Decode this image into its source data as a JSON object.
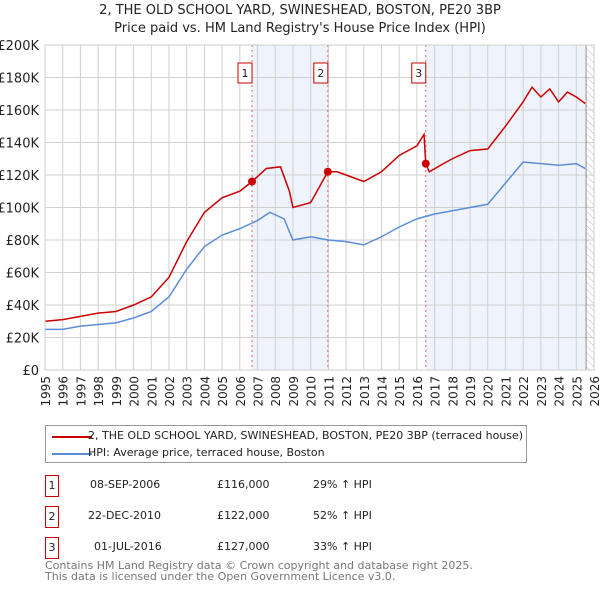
{
  "title": "2, THE OLD SCHOOL YARD, SWINESHEAD, BOSTON, PE20 3BP",
  "subtitle": "Price paid vs. HM Land Registry's House Price Index (HPI)",
  "chart_data": {
    "type": "line",
    "title": "2, THE OLD SCHOOL YARD, SWINESHEAD, BOSTON, PE20 3BP",
    "subtitle": "Price paid vs. HM Land Registry's House Price Index (HPI)",
    "xlim": [
      1995,
      2026
    ],
    "ylim": [
      0,
      200000
    ],
    "yticks": [
      0,
      20000,
      40000,
      60000,
      80000,
      100000,
      120000,
      140000,
      160000,
      180000,
      200000
    ],
    "ytick_labels": [
      "£0",
      "£20K",
      "£40K",
      "£60K",
      "£80K",
      "£100K",
      "£120K",
      "£140K",
      "£160K",
      "£180K",
      "£200K"
    ],
    "xticks": [
      "1995",
      "1996",
      "1997",
      "1998",
      "1999",
      "2000",
      "2001",
      "2002",
      "2003",
      "2004",
      "2005",
      "2006",
      "2007",
      "2008",
      "2009",
      "2010",
      "2011",
      "2012",
      "2013",
      "2014",
      "2015",
      "2016",
      "2017",
      "2018",
      "2019",
      "2020",
      "2021",
      "2022",
      "2023",
      "2024",
      "2025",
      "2026"
    ],
    "grid": true,
    "legend_position": "bottom",
    "series": [
      {
        "name": "2, THE OLD SCHOOL YARD, SWINESHEAD, BOSTON, PE20 3BP (terraced house)",
        "color": "#cc0000",
        "x": [
          1995,
          1996,
          1997,
          1998,
          1999,
          2000,
          2001,
          2002,
          2003,
          2004,
          2005,
          2006,
          2006.69,
          2007.5,
          2008.3,
          2008.8,
          2009,
          2010,
          2010.97,
          2011.5,
          2012,
          2013,
          2014,
          2015,
          2016,
          2016.4,
          2016.5,
          2016.7,
          2017.5,
          2018,
          2019,
          2020,
          2021,
          2022,
          2022.5,
          2023,
          2023.5,
          2024,
          2024.5,
          2025,
          2025.5
        ],
        "y": [
          30000,
          31000,
          33000,
          35000,
          36000,
          40000,
          45000,
          57000,
          79000,
          97000,
          106000,
          110000,
          116000,
          124000,
          125000,
          110000,
          100000,
          103000,
          122000,
          122000,
          120000,
          116000,
          122000,
          132000,
          138000,
          145000,
          127000,
          122000,
          127000,
          130000,
          135000,
          136000,
          150000,
          165000,
          174000,
          168000,
          173000,
          165000,
          171000,
          168000,
          164000
        ]
      },
      {
        "name": "HPI: Average price, terraced house, Boston",
        "color": "#5b8dd6",
        "x": [
          1995,
          1996,
          1997,
          1998,
          1999,
          2000,
          2001,
          2002,
          2003,
          2004,
          2005,
          2006,
          2007,
          2007.7,
          2008.5,
          2009,
          2010,
          2011,
          2012,
          2013,
          2014,
          2015,
          2016,
          2017,
          2018,
          2019,
          2020,
          2021,
          2022,
          2023,
          2024,
          2025,
          2025.5
        ],
        "y": [
          25000,
          25000,
          27000,
          28000,
          29000,
          32000,
          36000,
          45000,
          62000,
          76000,
          83000,
          87000,
          92000,
          97000,
          93000,
          80000,
          82000,
          80000,
          79000,
          77000,
          82000,
          88000,
          93000,
          96000,
          98000,
          100000,
          102000,
          115000,
          128000,
          127000,
          126000,
          127000,
          124000
        ]
      }
    ],
    "sales": [
      {
        "label": "1",
        "x": 2006.69,
        "y": 116000
      },
      {
        "label": "2",
        "x": 2010.97,
        "y": 122000
      },
      {
        "label": "3",
        "x": 2016.5,
        "y": 127000
      }
    ],
    "shaded_ranges": [
      [
        2006.69,
        2010.97
      ],
      [
        2016.5,
        2025.5
      ]
    ],
    "hatched_from": 2025.55
  },
  "legend": [
    "2, THE OLD SCHOOL YARD, SWINESHEAD, BOSTON, PE20 3BP (terraced house)",
    "HPI: Average price, terraced house, Boston"
  ],
  "transactions": [
    {
      "num": "1",
      "date": "08-SEP-2006",
      "price": "£116,000",
      "hpi": "29% ↑ HPI"
    },
    {
      "num": "2",
      "date": "22-DEC-2010",
      "price": "£122,000",
      "hpi": "52% ↑ HPI"
    },
    {
      "num": "3",
      "date": "01-JUL-2016",
      "price": "£127,000",
      "hpi": "33% ↑ HPI"
    }
  ],
  "footer": [
    "Contains HM Land Registry data © Crown copyright and database right 2025.",
    "This data is licensed under the Open Government Licence v3.0."
  ]
}
